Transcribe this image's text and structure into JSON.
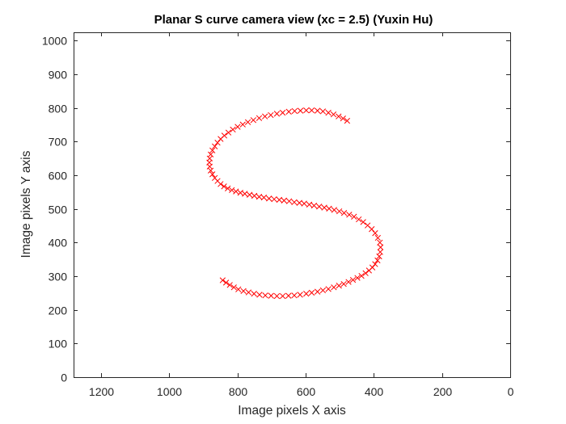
{
  "chart_data": {
    "type": "scatter",
    "title": "Planar S curve camera view (xc = 2.5) (Yuxin Hu)",
    "xlabel": "Image pixels X axis",
    "ylabel": "Image pixels Y axis",
    "xlim": [
      0,
      1280
    ],
    "ylim": [
      0,
      1025
    ],
    "x_reversed": true,
    "x_ticks": [
      1200,
      1000,
      800,
      600,
      400,
      200,
      0
    ],
    "y_ticks": [
      0,
      100,
      200,
      300,
      400,
      500,
      600,
      700,
      800,
      900,
      1000
    ],
    "grid": false,
    "box": true,
    "marker": "x",
    "color": "#ff0000",
    "x": [
      478,
      490,
      503,
      518,
      533,
      549,
      565,
      582,
      598,
      615,
      632,
      649,
      667,
      684,
      702,
      719,
      736,
      753,
      769,
      784,
      799,
      813,
      826,
      838,
      849,
      858,
      866,
      873,
      878,
      881,
      882,
      881,
      878,
      873,
      866,
      858,
      849,
      839,
      828,
      816,
      804,
      791,
      778,
      764,
      750,
      736,
      722,
      707,
      692,
      677,
      663,
      648,
      633,
      618,
      604,
      589,
      575,
      560,
      545,
      531,
      516,
      501,
      487,
      472,
      458,
      444,
      431,
      418,
      406,
      396,
      388,
      382,
      380,
      381,
      384,
      389,
      396,
      404,
      414,
      424,
      436,
      448,
      461,
      474,
      488,
      502,
      517,
      533,
      549,
      565,
      582,
      598,
      616,
      633,
      650,
      667,
      684,
      701,
      718,
      735,
      751,
      767,
      782,
      797,
      810,
      822,
      833,
      843
    ],
    "y": [
      762,
      769,
      775,
      781,
      786,
      790,
      792,
      793,
      793,
      792,
      791,
      789,
      786,
      783,
      779,
      775,
      770,
      764,
      758,
      751,
      744,
      736,
      727,
      718,
      708,
      697,
      686,
      674,
      662,
      650,
      638,
      626,
      614,
      603,
      592,
      583,
      574,
      567,
      561,
      556,
      552,
      548,
      545,
      542,
      539,
      536,
      534,
      531,
      529,
      527,
      525,
      523,
      520,
      518,
      516,
      513,
      510,
      507,
      504,
      501,
      497,
      493,
      488,
      483,
      477,
      469,
      461,
      451,
      440,
      428,
      414,
      400,
      386,
      372,
      359,
      347,
      336,
      326,
      317,
      309,
      301,
      295,
      289,
      283,
      277,
      272,
      267,
      262,
      258,
      254,
      251,
      248,
      245,
      243,
      242,
      241,
      241,
      242,
      243,
      245,
      248,
      252,
      256,
      261,
      267,
      274,
      281,
      288
    ]
  }
}
